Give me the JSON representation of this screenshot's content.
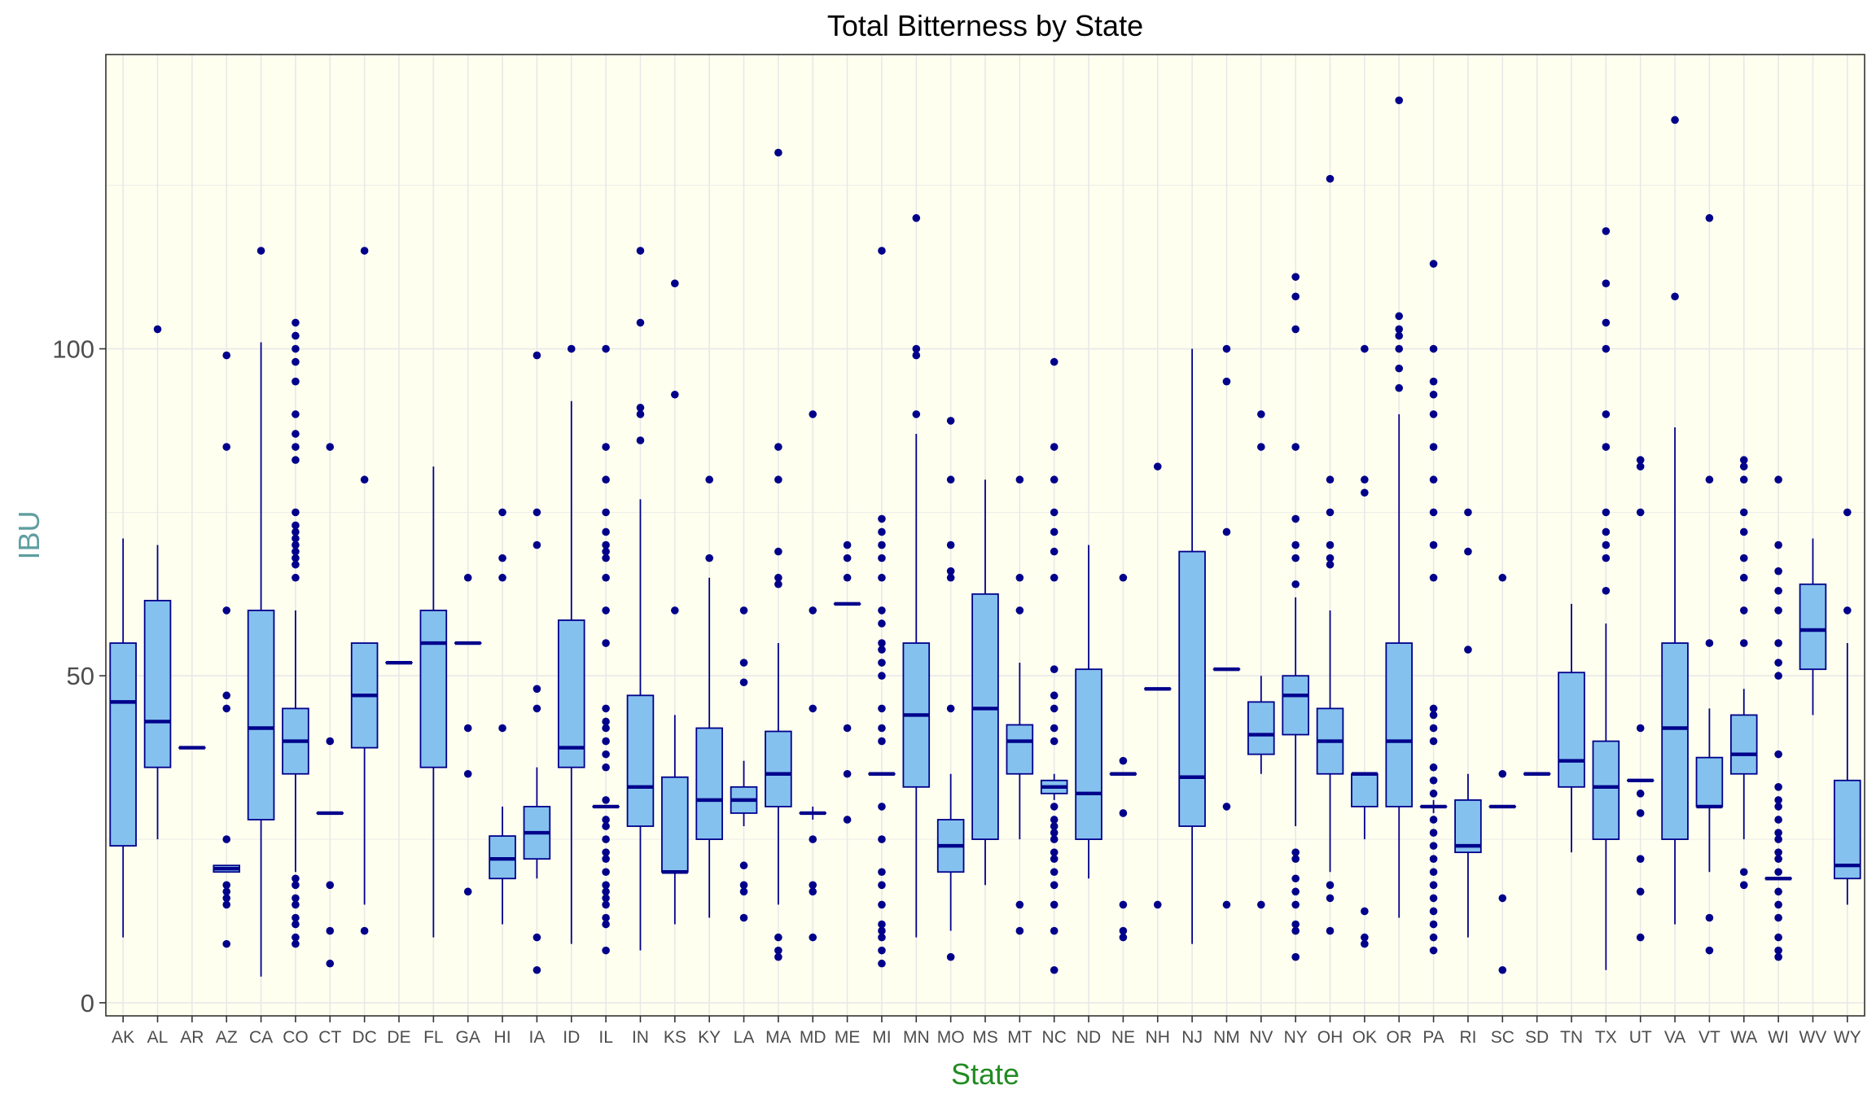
{
  "chart_data": {
    "type": "boxplot",
    "title": "Total Bitterness by State",
    "xlabel": "State",
    "ylabel": "IBU",
    "ylim": [
      -2,
      145
    ],
    "yticks": [
      0,
      50,
      100
    ],
    "grid": true,
    "legend": "none",
    "colors": {
      "panel_background": "#FFFFF0",
      "box_fill": "#85C1EE",
      "box_line": "#00008B",
      "outlier": "#00008B",
      "title": "#000000",
      "xlabel": "#228B22",
      "ylabel": "#5F9EA0",
      "grid": "#E8E8E8",
      "panel_border": "#333333",
      "tick_label": "#4D4D4D"
    },
    "categories": [
      "AK",
      "AL",
      "AR",
      "AZ",
      "CA",
      "CO",
      "CT",
      "DC",
      "DE",
      "FL",
      "GA",
      "HI",
      "IA",
      "ID",
      "IL",
      "IN",
      "KS",
      "KY",
      "LA",
      "MA",
      "MD",
      "ME",
      "MI",
      "MN",
      "MO",
      "MS",
      "MT",
      "NC",
      "ND",
      "NE",
      "NH",
      "NJ",
      "NM",
      "NV",
      "NY",
      "OH",
      "OK",
      "OR",
      "PA",
      "RI",
      "SC",
      "SD",
      "TN",
      "TX",
      "UT",
      "VA",
      "VT",
      "WA",
      "WI",
      "WV",
      "WY"
    ],
    "boxes": [
      {
        "state": "AK",
        "q1": 24,
        "median": 46,
        "q3": 55,
        "whisker_low": 10,
        "whisker_high": 71,
        "outliers": []
      },
      {
        "state": "AL",
        "q1": 36,
        "median": 43,
        "q3": 61.5,
        "whisker_low": 25,
        "whisker_high": 70,
        "outliers": [
          103
        ]
      },
      {
        "state": "AR",
        "q1": 39,
        "median": 39,
        "q3": 39,
        "whisker_low": 39,
        "whisker_high": 39,
        "outliers": []
      },
      {
        "state": "AZ",
        "q1": 20,
        "median": 20.5,
        "q3": 21,
        "whisker_low": 20,
        "whisker_high": 21,
        "outliers": [
          9,
          15,
          16,
          17,
          18,
          25,
          45,
          47,
          60,
          85,
          99
        ]
      },
      {
        "state": "CA",
        "q1": 28,
        "median": 42,
        "q3": 60,
        "whisker_low": 4,
        "whisker_high": 101,
        "outliers": [
          115
        ]
      },
      {
        "state": "CO",
        "q1": 35,
        "median": 40,
        "q3": 45,
        "whisker_low": 20,
        "whisker_high": 60,
        "outliers": [
          9,
          10,
          12,
          13,
          15,
          16,
          18,
          19,
          65,
          67,
          68,
          69,
          70,
          71,
          72,
          73,
          75,
          83,
          85,
          87,
          90,
          95,
          98,
          100,
          102,
          104
        ]
      },
      {
        "state": "CT",
        "q1": 29,
        "median": 29,
        "q3": 29,
        "whisker_low": 29,
        "whisker_high": 29,
        "outliers": [
          6,
          11,
          18,
          40,
          85
        ]
      },
      {
        "state": "DC",
        "q1": 39,
        "median": 47,
        "q3": 55,
        "whisker_low": 15,
        "whisker_high": 55,
        "outliers": [
          11,
          80,
          115
        ]
      },
      {
        "state": "DE",
        "q1": 52,
        "median": 52,
        "q3": 52,
        "whisker_low": 52,
        "whisker_high": 52,
        "outliers": []
      },
      {
        "state": "FL",
        "q1": 36,
        "median": 55,
        "q3": 60,
        "whisker_low": 10,
        "whisker_high": 82,
        "outliers": []
      },
      {
        "state": "GA",
        "q1": 55,
        "median": 55,
        "q3": 55,
        "whisker_low": 55,
        "whisker_high": 55,
        "outliers": [
          17,
          35,
          42,
          65
        ]
      },
      {
        "state": "HI",
        "q1": 19,
        "median": 22,
        "q3": 25.5,
        "whisker_low": 12,
        "whisker_high": 30,
        "outliers": [
          42,
          65,
          68,
          75
        ]
      },
      {
        "state": "IA",
        "q1": 22,
        "median": 26,
        "q3": 30,
        "whisker_low": 19,
        "whisker_high": 36,
        "outliers": [
          5,
          10,
          45,
          48,
          70,
          75,
          99
        ]
      },
      {
        "state": "ID",
        "q1": 36,
        "median": 39,
        "q3": 58.5,
        "whisker_low": 9,
        "whisker_high": 92,
        "outliers": [
          100
        ]
      },
      {
        "state": "IL",
        "q1": 30,
        "median": 30,
        "q3": 30,
        "whisker_low": 30,
        "whisker_high": 30,
        "outliers": [
          8,
          12,
          13,
          15,
          16,
          17,
          18,
          20,
          22,
          23,
          25,
          27,
          28,
          31,
          36,
          38,
          40,
          42,
          43,
          45,
          55,
          60,
          65,
          68,
          69,
          70,
          72,
          75,
          80,
          85,
          100
        ]
      },
      {
        "state": "IN",
        "q1": 27,
        "median": 33,
        "q3": 47,
        "whisker_low": 8,
        "whisker_high": 77,
        "outliers": [
          86,
          90,
          91,
          104,
          115
        ]
      },
      {
        "state": "KS",
        "q1": 20,
        "median": 20,
        "q3": 34.5,
        "whisker_low": 12,
        "whisker_high": 44,
        "outliers": [
          60,
          93,
          110
        ]
      },
      {
        "state": "KY",
        "q1": 25,
        "median": 31,
        "q3": 42,
        "whisker_low": 13,
        "whisker_high": 65,
        "outliers": [
          68,
          80
        ]
      },
      {
        "state": "LA",
        "q1": 29,
        "median": 31,
        "q3": 33,
        "whisker_low": 27,
        "whisker_high": 37,
        "outliers": [
          13,
          17,
          18,
          21,
          49,
          52,
          60
        ]
      },
      {
        "state": "MA",
        "q1": 30,
        "median": 35,
        "q3": 41.5,
        "whisker_low": 15,
        "whisker_high": 55,
        "outliers": [
          7,
          8,
          10,
          64,
          65,
          69,
          80,
          85,
          130
        ]
      },
      {
        "state": "MD",
        "q1": 29,
        "median": 29,
        "q3": 29,
        "whisker_low": 28,
        "whisker_high": 30,
        "outliers": [
          10,
          17,
          18,
          25,
          45,
          60,
          90
        ]
      },
      {
        "state": "ME",
        "q1": 61,
        "median": 61,
        "q3": 61,
        "whisker_low": 61,
        "whisker_high": 61,
        "outliers": [
          28,
          35,
          42,
          65,
          68,
          70
        ]
      },
      {
        "state": "MI",
        "q1": 35,
        "median": 35,
        "q3": 35,
        "whisker_low": 35,
        "whisker_high": 35,
        "outliers": [
          6,
          8,
          10,
          11,
          12,
          15,
          18,
          20,
          25,
          30,
          40,
          42,
          45,
          50,
          52,
          54,
          55,
          58,
          60,
          65,
          68,
          70,
          72,
          74,
          115
        ]
      },
      {
        "state": "MN",
        "q1": 33,
        "median": 44,
        "q3": 55,
        "whisker_low": 10,
        "whisker_high": 87,
        "outliers": [
          90,
          99,
          100,
          120
        ]
      },
      {
        "state": "MO",
        "q1": 20,
        "median": 24,
        "q3": 28,
        "whisker_low": 11,
        "whisker_high": 35,
        "outliers": [
          7,
          45,
          65,
          66,
          70,
          80,
          89
        ]
      },
      {
        "state": "MS",
        "q1": 25,
        "median": 45,
        "q3": 62.5,
        "whisker_low": 18,
        "whisker_high": 80,
        "outliers": []
      },
      {
        "state": "MT",
        "q1": 35,
        "median": 40,
        "q3": 42.5,
        "whisker_low": 25,
        "whisker_high": 52,
        "outliers": [
          11,
          15,
          60,
          65,
          80
        ]
      },
      {
        "state": "NC",
        "q1": 32,
        "median": 33,
        "q3": 34,
        "whisker_low": 31,
        "whisker_high": 35,
        "outliers": [
          5,
          11,
          15,
          18,
          20,
          22,
          23,
          25,
          26,
          27,
          28,
          30,
          40,
          42,
          45,
          47,
          51,
          65,
          69,
          72,
          75,
          80,
          85,
          98
        ]
      },
      {
        "state": "ND",
        "q1": 25,
        "median": 32,
        "q3": 51,
        "whisker_low": 19,
        "whisker_high": 70,
        "outliers": []
      },
      {
        "state": "NE",
        "q1": 35,
        "median": 35,
        "q3": 35,
        "whisker_low": 35,
        "whisker_high": 35,
        "outliers": [
          10,
          11,
          15,
          29,
          37,
          65
        ]
      },
      {
        "state": "NH",
        "q1": 48,
        "median": 48,
        "q3": 48,
        "whisker_low": 48,
        "whisker_high": 48,
        "outliers": [
          15,
          82
        ]
      },
      {
        "state": "NJ",
        "q1": 27,
        "median": 34.5,
        "q3": 69,
        "whisker_low": 9,
        "whisker_high": 100,
        "outliers": []
      },
      {
        "state": "NM",
        "q1": 51,
        "median": 51,
        "q3": 51,
        "whisker_low": 51,
        "whisker_high": 51,
        "outliers": [
          15,
          30,
          72,
          95,
          100
        ]
      },
      {
        "state": "NV",
        "q1": 38,
        "median": 41,
        "q3": 46,
        "whisker_low": 35,
        "whisker_high": 50,
        "outliers": [
          15,
          85,
          90
        ]
      },
      {
        "state": "NY",
        "q1": 41,
        "median": 47,
        "q3": 50,
        "whisker_low": 27,
        "whisker_high": 62,
        "outliers": [
          7,
          11,
          12,
          15,
          17,
          19,
          22,
          23,
          64,
          68,
          70,
          74,
          85,
          103,
          108,
          111
        ]
      },
      {
        "state": "OH",
        "q1": 35,
        "median": 40,
        "q3": 45,
        "whisker_low": 20,
        "whisker_high": 60,
        "outliers": [
          11,
          16,
          18,
          67,
          68,
          70,
          75,
          80,
          126
        ]
      },
      {
        "state": "OK",
        "q1": 30,
        "median": 35,
        "q3": 35,
        "whisker_low": 25,
        "whisker_high": 35,
        "outliers": [
          9,
          10,
          14,
          78,
          80,
          100
        ]
      },
      {
        "state": "OR",
        "q1": 30,
        "median": 40,
        "q3": 55,
        "whisker_low": 13,
        "whisker_high": 90,
        "outliers": [
          94,
          97,
          100,
          102,
          103,
          105,
          138
        ]
      },
      {
        "state": "PA",
        "q1": 30,
        "median": 30,
        "q3": 30,
        "whisker_low": 29,
        "whisker_high": 31,
        "outliers": [
          8,
          10,
          12,
          14,
          16,
          18,
          20,
          22,
          24,
          26,
          28,
          32,
          34,
          36,
          40,
          42,
          44,
          45,
          65,
          70,
          75,
          80,
          85,
          90,
          93,
          95,
          100,
          113
        ]
      },
      {
        "state": "RI",
        "q1": 23,
        "median": 24,
        "q3": 31,
        "whisker_low": 10,
        "whisker_high": 35,
        "outliers": [
          54,
          69,
          75
        ]
      },
      {
        "state": "SC",
        "q1": 30,
        "median": 30,
        "q3": 30,
        "whisker_low": 30,
        "whisker_high": 30,
        "outliers": [
          5,
          16,
          35,
          65
        ]
      },
      {
        "state": "SD",
        "q1": 35,
        "median": 35,
        "q3": 35,
        "whisker_low": 35,
        "whisker_high": 35,
        "outliers": []
      },
      {
        "state": "TN",
        "q1": 33,
        "median": 37,
        "q3": 50.5,
        "whisker_low": 23,
        "whisker_high": 61,
        "outliers": []
      },
      {
        "state": "TX",
        "q1": 25,
        "median": 33,
        "q3": 40,
        "whisker_low": 5,
        "whisker_high": 58,
        "outliers": [
          63,
          68,
          70,
          72,
          75,
          85,
          90,
          100,
          104,
          110,
          118
        ]
      },
      {
        "state": "UT",
        "q1": 34,
        "median": 34,
        "q3": 34,
        "whisker_low": 34,
        "whisker_high": 34,
        "outliers": [
          10,
          17,
          22,
          29,
          32,
          42,
          75,
          82,
          83
        ]
      },
      {
        "state": "VA",
        "q1": 25,
        "median": 42,
        "q3": 55,
        "whisker_low": 12,
        "whisker_high": 88,
        "outliers": [
          108,
          135
        ]
      },
      {
        "state": "VT",
        "q1": 30,
        "median": 30,
        "q3": 37.5,
        "whisker_low": 20,
        "whisker_high": 45,
        "outliers": [
          8,
          13,
          55,
          80,
          120
        ]
      },
      {
        "state": "WA",
        "q1": 35,
        "median": 38,
        "q3": 44,
        "whisker_low": 25,
        "whisker_high": 48,
        "outliers": [
          18,
          20,
          55,
          60,
          65,
          68,
          72,
          75,
          80,
          82,
          83
        ]
      },
      {
        "state": "WI",
        "q1": 19,
        "median": 19,
        "q3": 19,
        "whisker_low": 19,
        "whisker_high": 19,
        "outliers": [
          7,
          8,
          10,
          13,
          15,
          17,
          20,
          22,
          23,
          25,
          26,
          28,
          30,
          31,
          33,
          38,
          50,
          52,
          55,
          60,
          63,
          66,
          70,
          80
        ]
      },
      {
        "state": "WV",
        "q1": 51,
        "median": 57,
        "q3": 64,
        "whisker_low": 44,
        "whisker_high": 71,
        "outliers": []
      },
      {
        "state": "WY",
        "q1": 19,
        "median": 21,
        "q3": 34,
        "whisker_low": 15,
        "whisker_high": 55,
        "outliers": [
          60,
          75
        ]
      }
    ]
  }
}
